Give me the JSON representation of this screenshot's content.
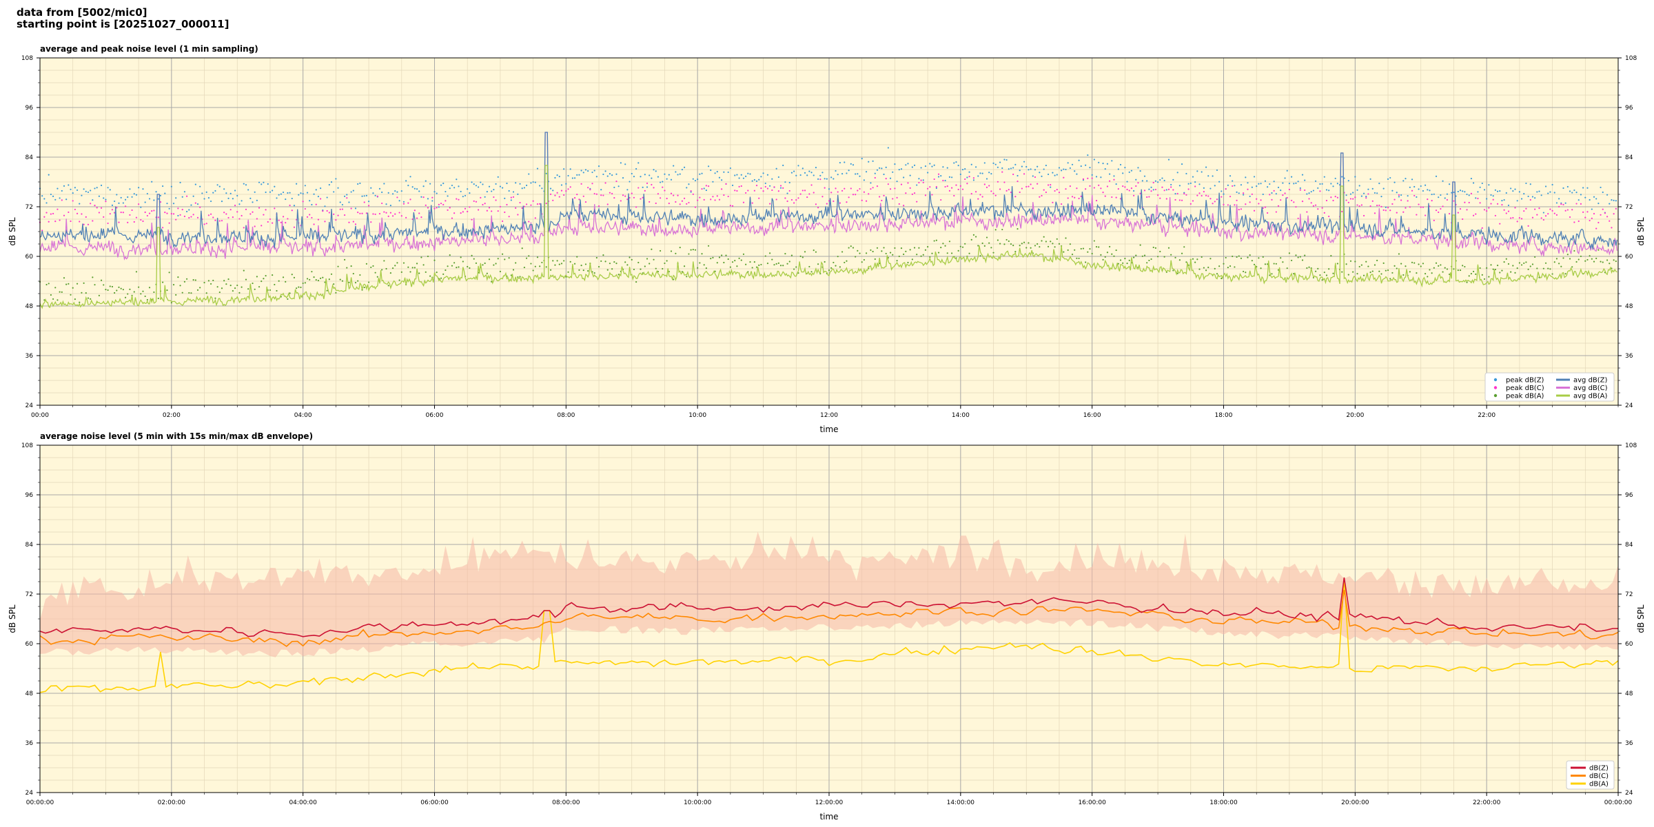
{
  "header": {
    "line1": "data from [5002/mic0]",
    "line2": "starting point is [20251027_000011]"
  },
  "colors": {
    "plot_bg": "#fff7d9",
    "peak_z": "#3a9ad9",
    "peak_c": "#ff33cc",
    "peak_a": "#5a9e30",
    "avg_z": "#4f80b5",
    "avg_c": "#d873d6",
    "avg_a": "#a8cc46",
    "db_z": "#cc1133",
    "db_c": "#ff8800",
    "db_a": "#ffd200",
    "envelope": "#f5b8a6"
  },
  "chart_data": [
    {
      "type": "line",
      "title": "average and peak noise level (1 min sampling)",
      "xlabel": "time",
      "ylabel": "dB SPL",
      "ylabel_right": "dB SPL",
      "xlim": [
        0,
        24
      ],
      "ylim": [
        24,
        108
      ],
      "yticks": [
        "24",
        "36",
        "48",
        "60",
        "72",
        "84",
        "96",
        "108"
      ],
      "xticks": [
        "00:00",
        "02:00",
        "04:00",
        "06:00",
        "08:00",
        "10:00",
        "12:00",
        "14:00",
        "16:00",
        "18:00",
        "20:00",
        "22:00"
      ],
      "grid": true,
      "legend_position": "bottom-right",
      "legend": [
        "peak dB(Z)",
        "peak dB(C)",
        "peak dB(A)",
        "avg dB(Z)",
        "avg dB(C)",
        "avg dB(A)"
      ],
      "series": [
        {
          "name": "avg dB(Z)",
          "baseline_profile": [
            [
              0,
              65
            ],
            [
              2,
              65
            ],
            [
              4,
              64.5
            ],
            [
              6,
              66
            ],
            [
              7.7,
              67
            ],
            [
              8,
              70
            ],
            [
              10,
              69
            ],
            [
              12,
              70
            ],
            [
              14,
              71
            ],
            [
              16,
              71
            ],
            [
              18,
              68
            ],
            [
              20,
              67
            ],
            [
              22,
              65
            ],
            [
              24,
              64
            ]
          ]
        },
        {
          "name": "avg dB(C)",
          "baseline_profile": [
            [
              0,
              62
            ],
            [
              2,
              62
            ],
            [
              4,
              62
            ],
            [
              6,
              63.5
            ],
            [
              7.7,
              64.5
            ],
            [
              8,
              67
            ],
            [
              10,
              66.5
            ],
            [
              12,
              67.5
            ],
            [
              14,
              68.5
            ],
            [
              16,
              68.5
            ],
            [
              18,
              66
            ],
            [
              20,
              65
            ],
            [
              22,
              63
            ],
            [
              24,
              62
            ]
          ]
        },
        {
          "name": "avg dB(A)",
          "baseline_profile": [
            [
              0,
              48.5
            ],
            [
              2,
              49
            ],
            [
              4,
              50.5
            ],
            [
              6,
              54.5
            ],
            [
              8,
              55
            ],
            [
              10,
              55.5
            ],
            [
              12,
              56
            ],
            [
              14,
              59.5
            ],
            [
              15,
              60.5
            ],
            [
              16,
              58
            ],
            [
              18,
              55
            ],
            [
              20,
              54.5
            ],
            [
              22,
              54
            ],
            [
              24,
              56.5
            ]
          ]
        }
      ],
      "spikes": [
        [
          1.8,
          75
        ],
        [
          7.7,
          90
        ],
        [
          19.8,
          85
        ],
        [
          21.5,
          78
        ]
      ]
    },
    {
      "type": "line",
      "title": "average noise level (5 min with 15s min/max dB envelope)",
      "xlabel": "time",
      "ylabel": "dB SPL",
      "ylabel_right": "dB SPL",
      "xlim": [
        0,
        24
      ],
      "ylim": [
        24,
        108
      ],
      "yticks": [
        "24",
        "36",
        "48",
        "60",
        "72",
        "84",
        "96",
        "108"
      ],
      "xticks": [
        "00:00:00",
        "02:00:00",
        "04:00:00",
        "06:00:00",
        "08:00:00",
        "10:00:00",
        "12:00:00",
        "14:00:00",
        "16:00:00",
        "18:00:00",
        "20:00:00",
        "22:00:00",
        "00:00:00"
      ],
      "grid": true,
      "legend_position": "bottom-right",
      "legend": [
        "dB(Z)",
        "dB(C)",
        "dB(A)"
      ],
      "series": [
        {
          "name": "dB(Z)",
          "baseline_profile": [
            [
              0,
              63
            ],
            [
              2,
              63.5
            ],
            [
              4,
              62.5
            ],
            [
              6,
              65
            ],
            [
              7.7,
              66
            ],
            [
              8,
              69
            ],
            [
              10,
              68.5
            ],
            [
              12,
              69
            ],
            [
              14,
              70
            ],
            [
              16,
              70
            ],
            [
              18,
              67.5
            ],
            [
              20,
              66.5
            ],
            [
              22,
              64
            ],
            [
              24,
              63.5
            ]
          ]
        },
        {
          "name": "dB(C)",
          "baseline_profile": [
            [
              0,
              61
            ],
            [
              2,
              61.5
            ],
            [
              4,
              60.5
            ],
            [
              6,
              63
            ],
            [
              7.7,
              64
            ],
            [
              8,
              66.5
            ],
            [
              10,
              66
            ],
            [
              12,
              67
            ],
            [
              14,
              68
            ],
            [
              16,
              68
            ],
            [
              18,
              65.5
            ],
            [
              20,
              64.5
            ],
            [
              22,
              62.5
            ],
            [
              24,
              62
            ]
          ]
        },
        {
          "name": "dB(A)",
          "baseline_profile": [
            [
              0,
              48.5
            ],
            [
              2,
              49.5
            ],
            [
              4,
              50
            ],
            [
              6,
              54
            ],
            [
              8,
              55
            ],
            [
              10,
              55.5
            ],
            [
              12,
              56
            ],
            [
              14,
              59
            ],
            [
              15,
              60
            ],
            [
              16,
              58
            ],
            [
              18,
              55
            ],
            [
              20,
              54
            ],
            [
              22,
              54
            ],
            [
              24,
              56
            ]
          ]
        }
      ],
      "spikes": [
        [
          1.8,
          58
        ],
        [
          7.7,
          68
        ],
        [
          19.8,
          76
        ]
      ],
      "envelope_profile": [
        [
          0,
          70
        ],
        [
          2,
          76
        ],
        [
          4,
          76
        ],
        [
          6,
          78
        ],
        [
          7.7,
          84
        ],
        [
          8,
          80
        ],
        [
          10,
          80
        ],
        [
          12,
          81
        ],
        [
          14,
          80
        ],
        [
          16,
          80
        ],
        [
          18,
          78
        ],
        [
          20,
          76
        ],
        [
          22,
          74
        ],
        [
          24,
          74
        ]
      ]
    }
  ],
  "plots": {
    "top": {
      "title": "average and peak noise level (1 min sampling)"
    },
    "bottom": {
      "title": "average noise level (5 min with 15s min/max dB envelope)"
    }
  }
}
